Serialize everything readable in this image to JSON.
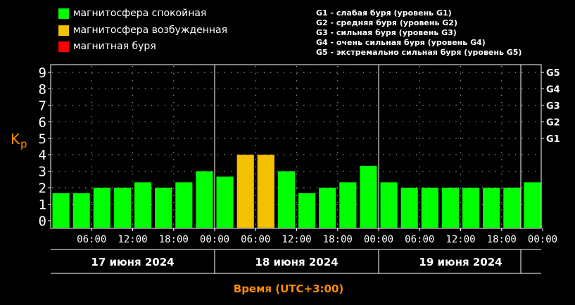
{
  "legend": {
    "calm": {
      "label": "магнитосфера спокойная",
      "color": "#00ff00"
    },
    "excited": {
      "label": "магнитосфера возбужденная",
      "color": "#f5c000"
    },
    "storm": {
      "label": "магнитная буря",
      "color": "#ff0000"
    }
  },
  "g_scale": [
    "G1 - слабая буря (уровень G1)",
    "G2 - средняя буря (уровень G2)",
    "G3 - сильная буря (уровень G3)",
    "G4 - очень сильная буря (уровень G4)",
    "G5 - экстремально сильная буря (уровень G5)"
  ],
  "chart_data": {
    "type": "bar",
    "ylabel": "Kp",
    "xlabel": "Время (UTC+3:00)",
    "ylim": [
      0,
      9
    ],
    "yticks": [
      "0",
      "1",
      "2",
      "3",
      "4",
      "5",
      "6",
      "7",
      "8",
      "9"
    ],
    "right_ticks": [
      {
        "y": 5,
        "label": "G1"
      },
      {
        "y": 6,
        "label": "G2"
      },
      {
        "y": 7,
        "label": "G3"
      },
      {
        "y": 8,
        "label": "G4"
      },
      {
        "y": 9,
        "label": "G5"
      }
    ],
    "time_ticks": [
      "06:00",
      "12:00",
      "18:00",
      "00:00",
      "06:00",
      "12:00",
      "18:00",
      "00:00",
      "06:00",
      "12:00",
      "18:00",
      "00:00"
    ],
    "days": [
      "17 июня 2024",
      "18 июня 2024",
      "19 июня 2024"
    ],
    "values": [
      1.67,
      1.67,
      2.0,
      2.0,
      2.33,
      2.0,
      2.33,
      3.0,
      2.67,
      4.0,
      4.0,
      3.0,
      1.67,
      2.0,
      2.33,
      3.33,
      2.33,
      2.0,
      2.0,
      2.0,
      2.0,
      2.0,
      2.0,
      2.33
    ],
    "levels": [
      "calm",
      "calm",
      "calm",
      "calm",
      "calm",
      "calm",
      "calm",
      "calm",
      "calm",
      "excited",
      "excited",
      "calm",
      "calm",
      "calm",
      "calm",
      "calm",
      "calm",
      "calm",
      "calm",
      "calm",
      "calm",
      "calm",
      "calm",
      "calm"
    ],
    "grid": true,
    "axis_color": "#ffffff",
    "label_color": "#ff8c00"
  }
}
